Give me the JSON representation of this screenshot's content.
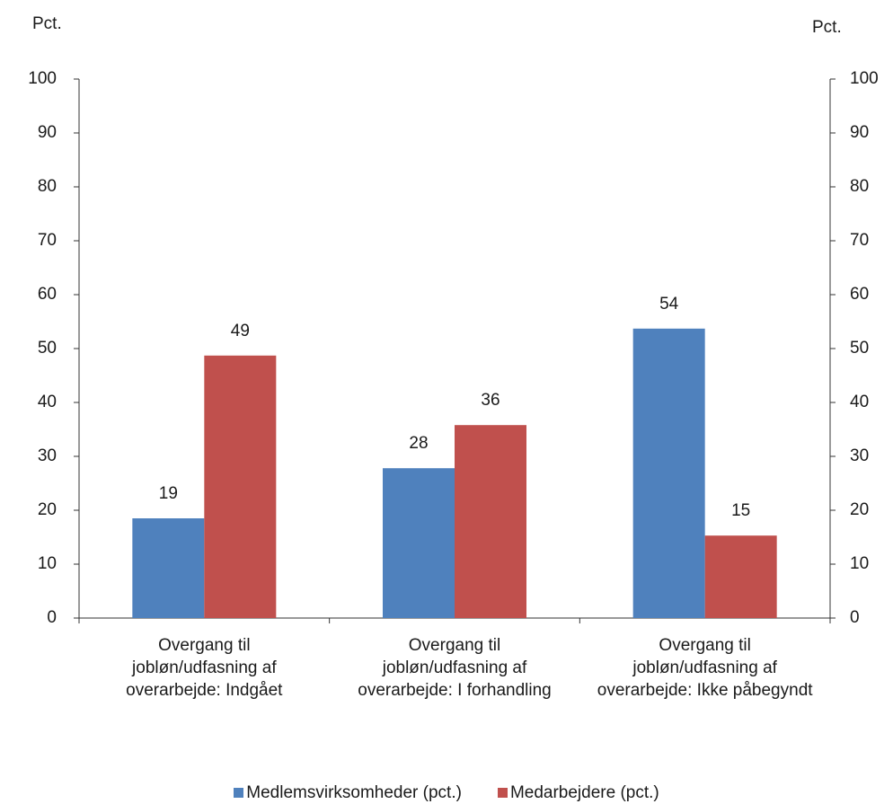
{
  "chart_data": {
    "type": "bar",
    "y_label": "Pct.",
    "y2_label": "Pct.",
    "categories": [
      "Overgang til jobløn/udfasning af overarbejde: Indgået",
      "Overgang til jobløn/udfasning af overarbejde: I forhandling",
      "Overgang til jobløn/udfasning af overarbejde: Ikke påbegyndt"
    ],
    "series": [
      {
        "name": "Medlemsvirksomheder (pct.)",
        "color": "#4f81bd",
        "values": [
          18.5,
          27.8,
          53.7
        ],
        "value_labels": [
          "19",
          "28",
          "54"
        ]
      },
      {
        "name": "Medarbejdere (pct.)",
        "color": "#c0504d",
        "values": [
          48.7,
          35.8,
          15.3
        ],
        "value_labels": [
          "49",
          "36",
          "15"
        ]
      }
    ],
    "ylim": [
      0,
      100
    ],
    "yticks": [
      0,
      10,
      20,
      30,
      40,
      50,
      60,
      70,
      80,
      90,
      100
    ],
    "y2lim": [
      0,
      100
    ],
    "y2ticks": [
      0,
      10,
      20,
      30,
      40,
      50,
      60,
      70,
      80,
      90,
      100
    ],
    "grid": false,
    "legend": "bottom"
  }
}
